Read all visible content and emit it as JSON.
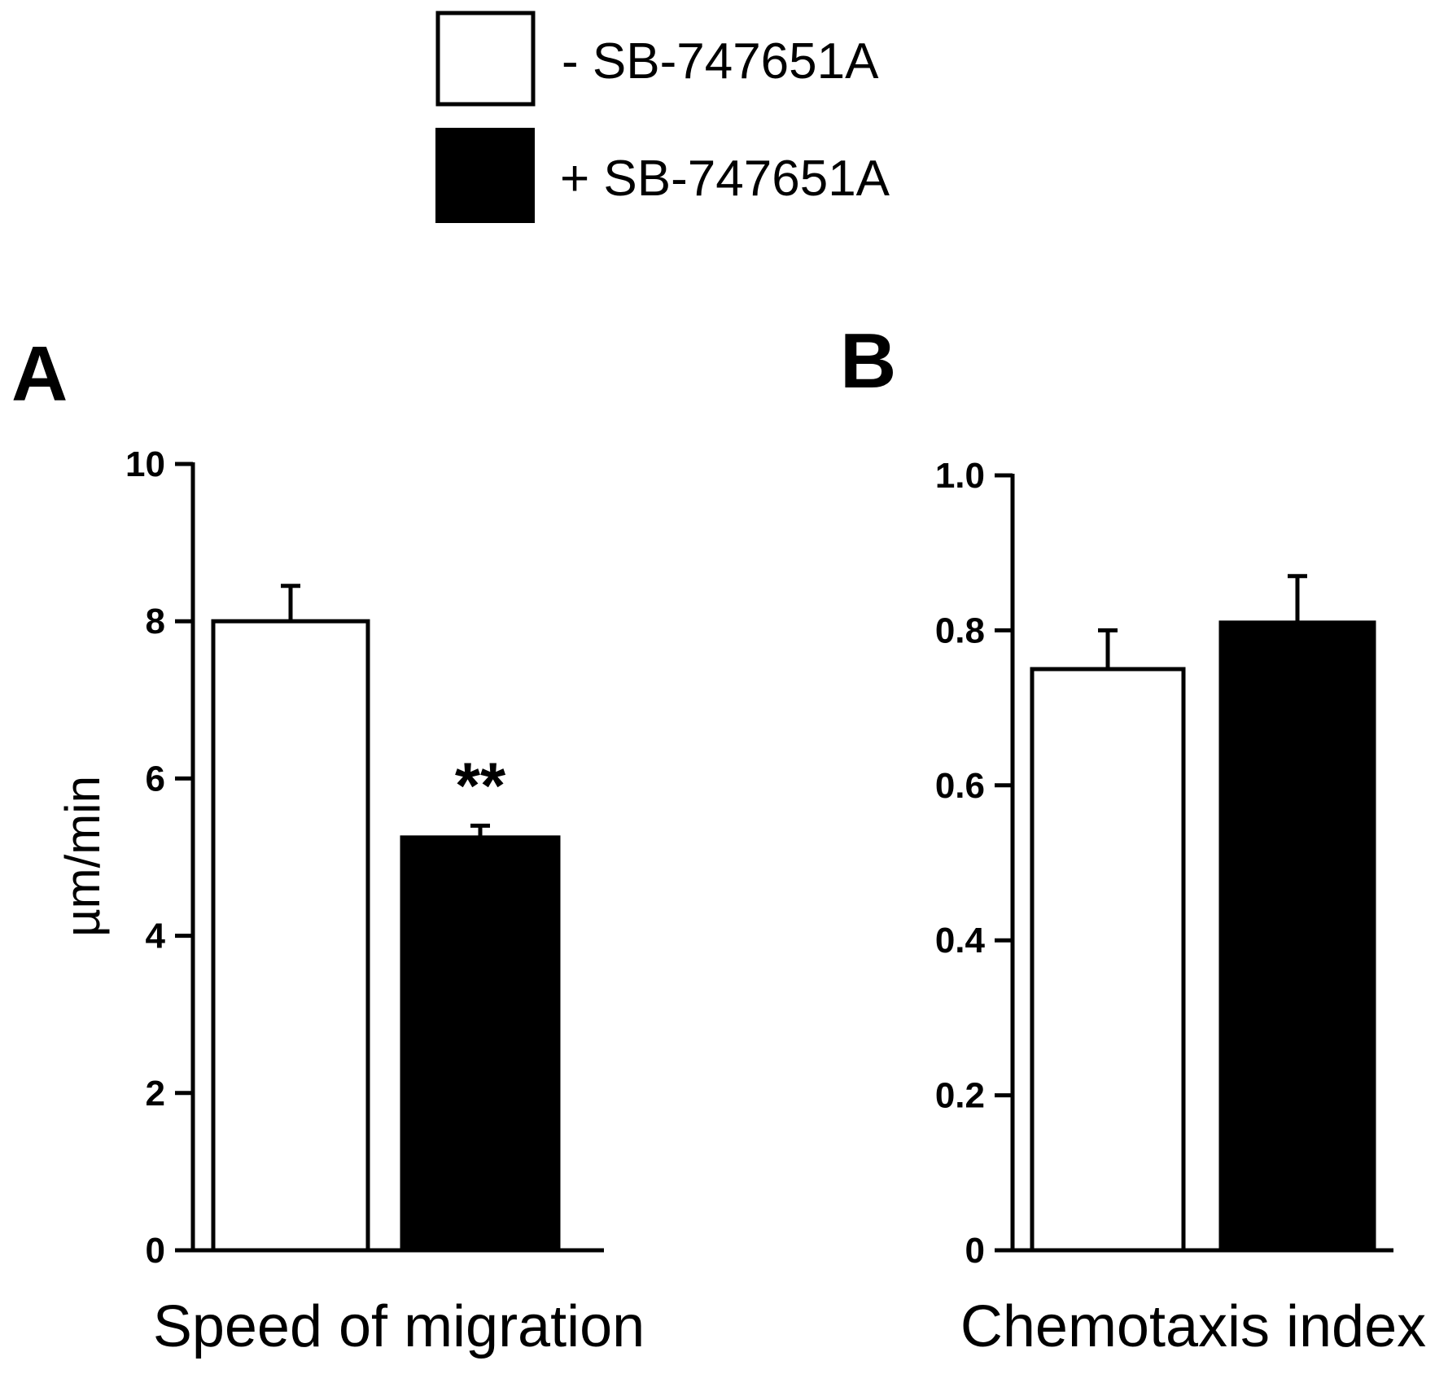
{
  "legend": [
    {
      "label": "- SB-747651A",
      "fill": "#ffffff"
    },
    {
      "label": "+ SB-747651A",
      "fill": "#000000"
    }
  ],
  "chart_data": [
    {
      "type": "bar",
      "panel": "A",
      "title": "",
      "xlabel": "Speed of migration",
      "ylabel": "µm/min",
      "ylim": [
        0,
        10
      ],
      "yticks": [
        0,
        2,
        4,
        6,
        8,
        10
      ],
      "ytick_labels": [
        "0",
        "2",
        "4",
        "6",
        "8",
        "10"
      ],
      "categories": [
        "- SB-747651A",
        "+ SB-747651A"
      ],
      "values": [
        8.0,
        5.25
      ],
      "errors": [
        0.45,
        0.15
      ],
      "fills": [
        "#ffffff",
        "#000000"
      ],
      "annotations": [
        "",
        "**"
      ]
    },
    {
      "type": "bar",
      "panel": "B",
      "title": "",
      "xlabel": "Chemotaxis index",
      "ylabel": "",
      "ylim": [
        0,
        1.0
      ],
      "yticks": [
        0,
        0.2,
        0.4,
        0.6,
        0.8,
        1.0
      ],
      "ytick_labels": [
        "0",
        "0.2",
        "0.4",
        "0.6",
        "0.8",
        "1.0"
      ],
      "categories": [
        "- SB-747651A",
        "+ SB-747651A"
      ],
      "values": [
        0.75,
        0.81
      ],
      "errors": [
        0.05,
        0.06
      ],
      "fills": [
        "#ffffff",
        "#000000"
      ],
      "annotations": [
        "",
        ""
      ]
    }
  ]
}
